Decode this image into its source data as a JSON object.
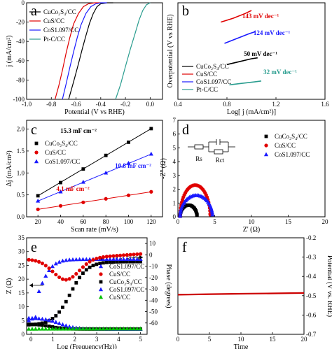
{
  "chart_data": [
    {
      "panel": "a",
      "type": "line",
      "xlabel": "Potential (V vs RHE)",
      "ylabel": "j (mA/cm²)",
      "xlim": [
        -1.0,
        0.1
      ],
      "ylim": [
        -100,
        0
      ],
      "xticks": [
        "-1.0",
        "-0.8",
        "-0.6",
        "-0.4",
        "-0.2",
        "0.0"
      ],
      "yticks": [
        "0",
        "-20",
        "-40",
        "-60",
        "-80",
        "-100"
      ],
      "series": [
        {
          "name": "CuCo₂S₄/CC",
          "color": "#000000",
          "x": [
            -0.66,
            -0.62,
            -0.58,
            -0.55,
            -0.52,
            -0.49,
            -0.46,
            -0.43,
            -0.4,
            -0.35,
            -0.3
          ],
          "y": [
            -100,
            -82,
            -63,
            -48,
            -34,
            -21,
            -11,
            -4,
            -1,
            0,
            0
          ]
        },
        {
          "name": "CuS/CC",
          "color": "#e00000",
          "x": [
            -0.77,
            -0.74,
            -0.71,
            -0.68,
            -0.65,
            -0.62,
            -0.58,
            -0.54,
            -0.5,
            -0.45,
            -0.4
          ],
          "y": [
            -100,
            -86,
            -70,
            -52,
            -36,
            -22,
            -11,
            -4,
            -1,
            0,
            0
          ]
        },
        {
          "name": "CoS1.097/CC",
          "color": "#1a1aff",
          "x": [
            -0.71,
            -0.68,
            -0.65,
            -0.62,
            -0.59,
            -0.56,
            -0.52,
            -0.48,
            -0.44,
            -0.4,
            -0.35
          ],
          "y": [
            -100,
            -84,
            -67,
            -51,
            -36,
            -23,
            -11,
            -4,
            -1,
            0,
            0
          ]
        },
        {
          "name": "Pt-C/CC",
          "color": "#2a9d8f",
          "x": [
            -0.28,
            -0.24,
            -0.2,
            -0.16,
            -0.12,
            -0.09,
            -0.06,
            -0.03,
            0.0
          ],
          "y": [
            -100,
            -85,
            -66,
            -48,
            -31,
            -18,
            -8,
            -2,
            0
          ]
        }
      ]
    },
    {
      "panel": "b",
      "type": "line",
      "xlabel": "Log[ j (mA/cm²)]",
      "ylabel": "Overpotential (V vs RHE)",
      "xlim": [
        0.4,
        1.6
      ],
      "xticks": [
        "0.4",
        "0.8",
        "1.2",
        "1.6"
      ],
      "ylim": [
        0,
        1
      ],
      "series": [
        {
          "name": "CuCo₂S₄/CC",
          "color": "#000000",
          "x": [
            0.8,
            0.9,
            1.0,
            1.05
          ],
          "y": [
            0.36,
            0.39,
            0.42,
            0.43
          ]
        },
        {
          "name": "CuS/CC",
          "color": "#e00000",
          "x": [
            0.75,
            0.85,
            0.95,
            1.0
          ],
          "y": [
            0.8,
            0.84,
            0.89,
            0.92
          ]
        },
        {
          "name": "CoS1.097/CC",
          "color": "#1a1aff",
          "x": [
            0.78,
            0.88,
            0.98,
            1.03
          ],
          "y": [
            0.58,
            0.63,
            0.68,
            0.7
          ]
        },
        {
          "name": "Pt-C/CC",
          "color": "#2a9d8f",
          "x": [
            0.82,
            0.92,
            1.02,
            1.08
          ],
          "y": [
            0.15,
            0.165,
            0.18,
            0.19
          ]
        }
      ],
      "annotations": [
        {
          "text": "143 mV dec⁻¹",
          "color": "#e00000"
        },
        {
          "text": "124 mV dec⁻¹",
          "color": "#1a1aff"
        },
        {
          "text": "50 mV dec⁻¹",
          "color": "#000000"
        },
        {
          "text": "32 mV dec⁻¹",
          "color": "#2a9d8f"
        }
      ]
    },
    {
      "panel": "c",
      "type": "scatter",
      "xlabel": "Scan rate (mV/s)",
      "ylabel": "Δj (mA/cm²)",
      "xlim": [
        10,
        130
      ],
      "ylim": [
        0.0,
        2.2
      ],
      "xticks": [
        "20",
        "40",
        "60",
        "80",
        "100",
        "120"
      ],
      "yticks": [
        "0.0",
        "0.5",
        "1.0",
        "1.5",
        "2.0"
      ],
      "series": [
        {
          "name": "CuCo₂S₄/CC",
          "color": "#000000",
          "marker": "square",
          "x": [
            20,
            40,
            60,
            80,
            100,
            120
          ],
          "y": [
            0.48,
            0.78,
            1.09,
            1.4,
            1.7,
            2.01
          ]
        },
        {
          "name": "CuS/CC",
          "color": "#e00000",
          "marker": "circle",
          "x": [
            20,
            40,
            60,
            80,
            100,
            120
          ],
          "y": [
            0.17,
            0.25,
            0.33,
            0.41,
            0.49,
            0.57
          ]
        },
        {
          "name": "CoS1.097/CC",
          "color": "#1a1aff",
          "marker": "triangle",
          "x": [
            20,
            40,
            60,
            80,
            100,
            120
          ],
          "y": [
            0.36,
            0.57,
            0.79,
            1.0,
            1.22,
            1.43
          ]
        }
      ],
      "annotations": [
        {
          "text": "15.3 mF cm⁻²",
          "color": "#000000"
        },
        {
          "text": "10.8 mF cm⁻²",
          "color": "#1a1aff"
        },
        {
          "text": "4.1 mF cm⁻²",
          "color": "#e00000"
        }
      ]
    },
    {
      "panel": "d",
      "type": "scatter",
      "xlabel": "Z' (Ω)",
      "ylabel": "-Z'' (Ω)",
      "xlim": [
        0,
        20
      ],
      "ylim": [
        0,
        7
      ],
      "xticks": [
        "0",
        "5",
        "10",
        "15",
        "20"
      ],
      "yticks": [
        "0",
        "1",
        "2",
        "3",
        "4",
        "5",
        "6",
        "7"
      ],
      "circuit_labels": [
        "Rs",
        "Rct"
      ],
      "series": [
        {
          "name": "CuCo₂S₄/CC",
          "color": "#000000",
          "marker": "square",
          "x0": 0.3,
          "x1": 2.6,
          "peak": 0.85,
          "n": 24
        },
        {
          "name": "CuS/CC",
          "color": "#e00000",
          "marker": "circle",
          "x0": 0.3,
          "x1": 4.4,
          "peak": 2.3,
          "n": 34
        },
        {
          "name": "CoS1.097/CC",
          "color": "#1a1aff",
          "marker": "triangle",
          "x0": 0.3,
          "x1": 4.7,
          "peak": 1.55,
          "n": 34
        }
      ]
    },
    {
      "panel": "e",
      "type": "scatter",
      "xlabel": "Log (Frequency(Hz))",
      "ylabel": "Z (Ω)",
      "ylabel_right": "Phase (degrees)",
      "xlim": [
        -0.2,
        5.3
      ],
      "ylim": [
        0,
        35
      ],
      "ylim_right": [
        -70,
        15
      ],
      "xticks": [
        "0",
        "1",
        "2",
        "3",
        "4",
        "5"
      ],
      "yticks": [
        "0",
        "5",
        "10",
        "15",
        "20",
        "25",
        "30",
        "35"
      ],
      "yticks_right": [
        "10",
        "0",
        "-10",
        "-20",
        "-30",
        "-40",
        "-50",
        "-60"
      ],
      "series": [
        {
          "name": "CuCo₂S₄/CC",
          "axis": "right",
          "color": "#000000",
          "marker": "square"
        },
        {
          "name": "CoS1.097/CC",
          "axis": "right",
          "color": "#1a1aff",
          "marker": "triangle"
        },
        {
          "name": "CuS/CC",
          "axis": "right",
          "color": "#e00000",
          "marker": "circle"
        },
        {
          "name": "CuCo₂S₄/CC",
          "axis": "left",
          "color": "#000000",
          "marker": "square"
        },
        {
          "name": "CoS1.097/CC",
          "axis": "left",
          "color": "#1a1aff",
          "marker": "triangle"
        },
        {
          "name": "CuS/CC",
          "axis": "left",
          "color": "#00c000",
          "marker": "triangle"
        }
      ]
    },
    {
      "panel": "f",
      "type": "line",
      "xlabel": "Time",
      "ylabel": "Potential (V vs. RHE)",
      "xlim": [
        0,
        20
      ],
      "ylim": [
        -0.7,
        -0.2
      ],
      "xticks": [
        "0",
        "5",
        "10",
        "15",
        "20"
      ],
      "yticks": [
        "-0.2",
        "-0.3",
        "-0.4",
        "-0.5",
        "-0.6",
        "-0.7"
      ],
      "series": [
        {
          "name": "",
          "color": "#cc0000",
          "x": [
            0,
            5,
            10,
            15,
            20
          ],
          "y": [
            -0.495,
            -0.492,
            -0.49,
            -0.488,
            -0.486
          ]
        }
      ]
    }
  ],
  "panel_letters": [
    "a",
    "b",
    "c",
    "d",
    "e",
    "f"
  ]
}
